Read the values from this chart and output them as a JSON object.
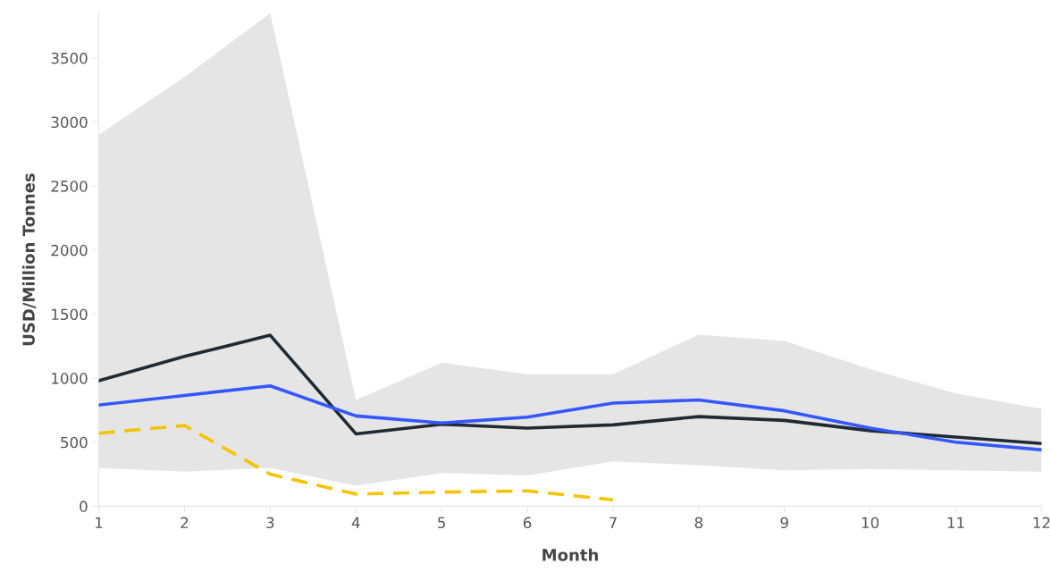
{
  "chart_data": {
    "type": "line",
    "xlabel": "Month",
    "ylabel": "USD/Million Tonnes",
    "x": [
      1,
      2,
      3,
      4,
      5,
      6,
      7,
      8,
      9,
      10,
      11,
      12
    ],
    "xlim": [
      1,
      12
    ],
    "xticks": [
      1,
      2,
      3,
      4,
      5,
      6,
      7,
      8,
      9,
      10,
      11,
      12
    ],
    "ylim": [
      0,
      3850
    ],
    "yticks": [
      0,
      500,
      1000,
      1500,
      2000,
      2500,
      3000,
      3500
    ],
    "grid": false,
    "marker": "none",
    "series": [
      {
        "color": "#1f2a33",
        "line_style": "solid",
        "values": [
          980,
          1170,
          1335,
          565,
          640,
          610,
          635,
          700,
          670,
          590,
          540,
          490
        ],
        "lower": [
          300,
          270,
          300,
          160,
          260,
          240,
          350,
          320,
          280,
          290,
          280,
          270
        ],
        "upper": [
          2900,
          3350,
          3850,
          830,
          1120,
          1030,
          1030,
          1340,
          1290,
          1070,
          880,
          760
        ]
      },
      {
        "color": "#3557ff",
        "line_style": "solid",
        "values": [
          790,
          865,
          940,
          705,
          650,
          695,
          805,
          830,
          745,
          610,
          500,
          440
        ]
      },
      {
        "color": "#f5c400",
        "line_style": "dashed",
        "values": [
          570,
          630,
          250,
          95,
          110,
          120,
          50,
          null,
          null,
          null,
          null,
          null
        ]
      }
    ]
  }
}
